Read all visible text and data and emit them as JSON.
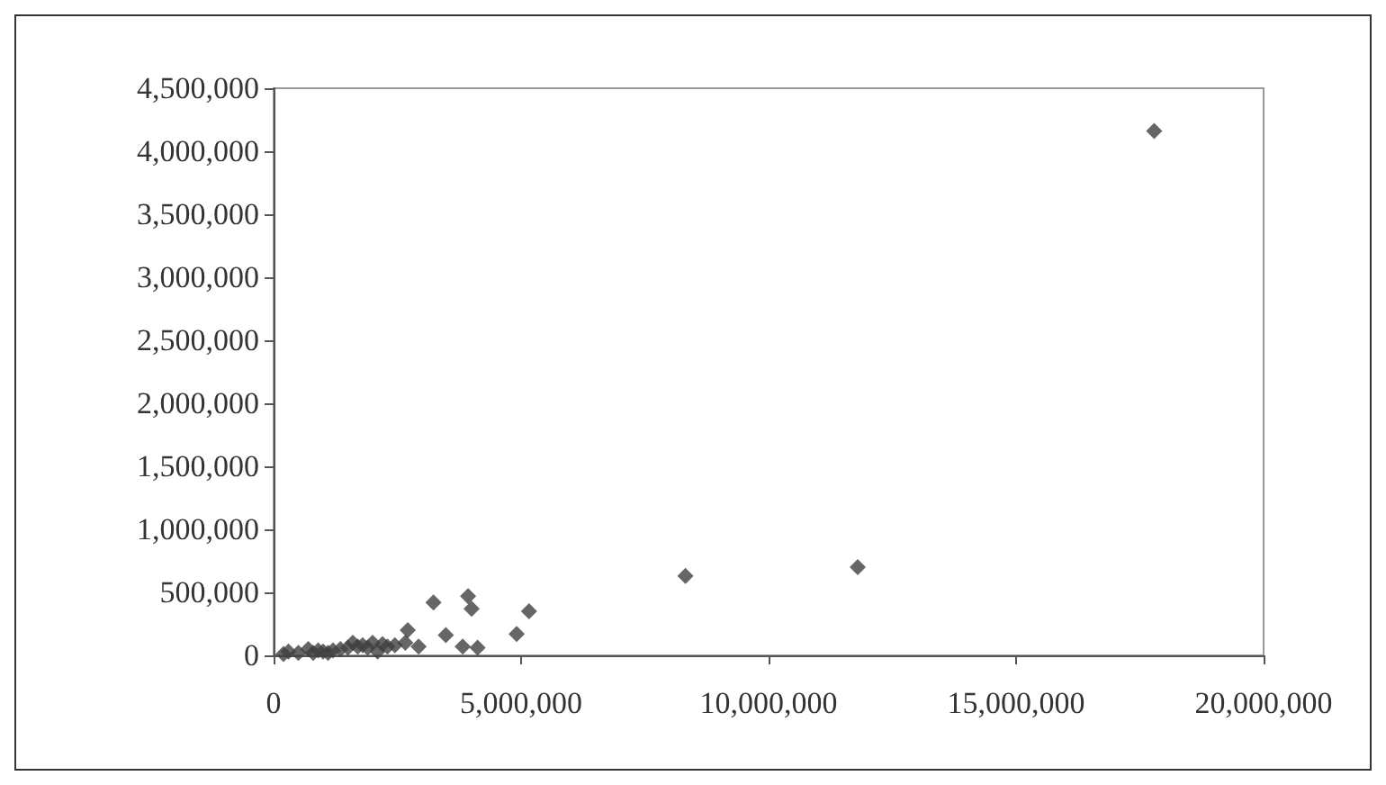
{
  "chart_data": {
    "type": "scatter",
    "marker": "diamond",
    "grid": false,
    "x": [
      200000,
      300000,
      500000,
      700000,
      800000,
      900000,
      1000000,
      1100000,
      1200000,
      1350000,
      1500000,
      1600000,
      1700000,
      1800000,
      1900000,
      2000000,
      2100000,
      2200000,
      2300000,
      2450000,
      2660000,
      2710000,
      2930000,
      3230000,
      3480000,
      3820000,
      3930000,
      4000000,
      4120000,
      4910000,
      5160000,
      8320000,
      11800000,
      17790000
    ],
    "values": [
      10000,
      30000,
      20000,
      50000,
      20000,
      40000,
      30000,
      20000,
      40000,
      50000,
      60000,
      100000,
      70000,
      80000,
      60000,
      100000,
      30000,
      90000,
      70000,
      80000,
      100000,
      200000,
      70000,
      420000,
      160000,
      70000,
      470000,
      370000,
      60000,
      170000,
      350000,
      630000,
      700000,
      4160000
    ],
    "color": "#404040",
    "xlim": [
      0,
      20000000
    ],
    "xticks": [
      0,
      {
        "value": 5000000,
        "label": "5,000,000"
      },
      {
        "value": 10000000,
        "label": "10,000,000"
      },
      {
        "value": 15000000,
        "label": "15,000,000"
      },
      {
        "value": 20000000,
        "label": "20,000,000"
      }
    ],
    "ylim": [
      0,
      4500000
    ],
    "yticks": [
      0,
      {
        "value": 500000,
        "label": "500,000"
      },
      {
        "value": 1000000,
        "label": "1,000,000"
      },
      {
        "value": 1500000,
        "label": "1,500,000"
      },
      {
        "value": 2000000,
        "label": "2,000,000"
      },
      {
        "value": 2500000,
        "label": "2,500,000"
      },
      {
        "value": 3000000,
        "label": "3,000,000"
      },
      {
        "value": 3500000,
        "label": "3,500,000"
      },
      {
        "value": 4000000,
        "label": "4,000,000"
      },
      {
        "value": 4500000,
        "label": "4,500,000"
      }
    ]
  }
}
